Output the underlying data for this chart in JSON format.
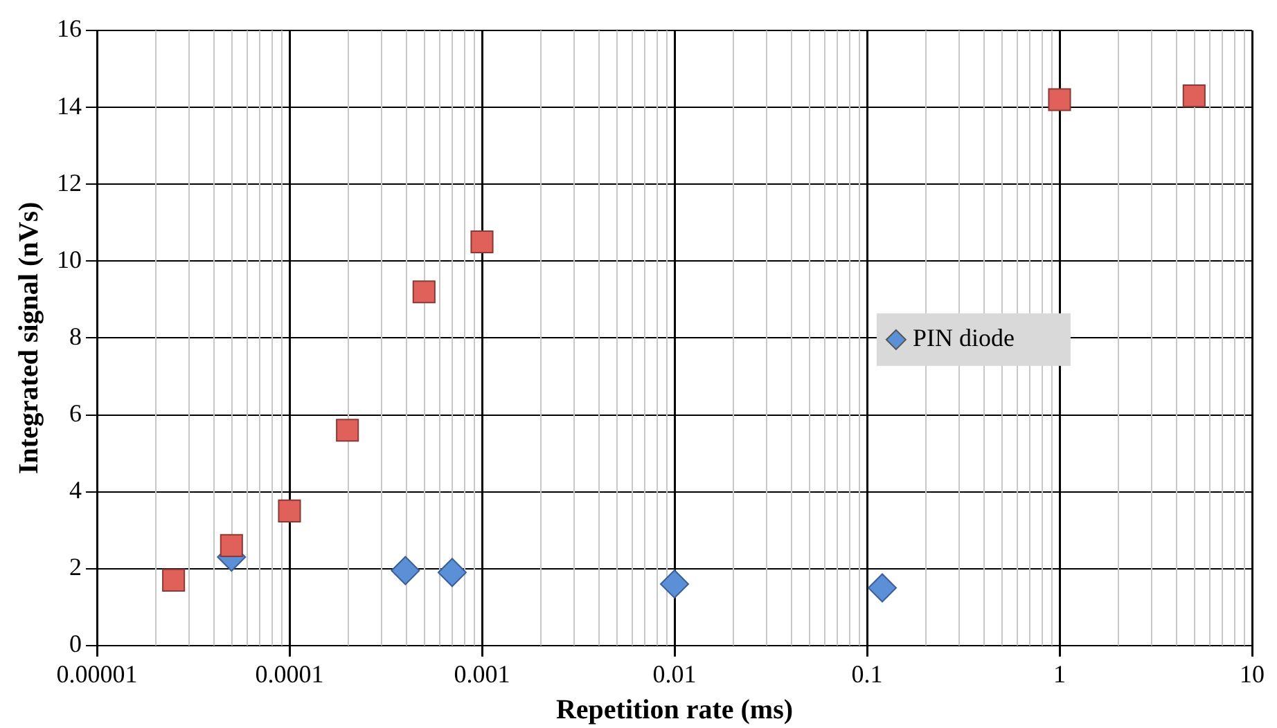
{
  "chart_data": {
    "type": "scatter",
    "xlabel": "Repetition rate (ms)",
    "ylabel": "Integrated signal (nVs)",
    "log": "x",
    "xlim": [
      1e-05,
      10
    ],
    "xticks": [
      {
        "value": 1e-05,
        "label": "0.00001"
      },
      {
        "value": 0.0001,
        "label": "0.0001"
      },
      {
        "value": 0.001,
        "label": "0.001"
      },
      {
        "value": 0.01,
        "label": "0.01"
      },
      {
        "value": 0.1,
        "label": "0.1"
      },
      1,
      10
    ],
    "ylim": [
      0,
      16
    ],
    "yticks": [
      0,
      2,
      4,
      6,
      8,
      10,
      12,
      14,
      16
    ],
    "grid": true,
    "legend": "right",
    "series": [
      {
        "color": "#e0605a",
        "marker": "square",
        "x": [
          2.5e-05,
          5e-05,
          0.0001,
          0.0002,
          0.0005,
          0.001,
          1,
          5
        ],
        "values": [
          1.7,
          2.6,
          3.5,
          5.6,
          9.2,
          10.5,
          14.2,
          14.3
        ]
      },
      {
        "name": "PIN diode",
        "color": "#5b8fd6",
        "marker": "diamond",
        "x": [
          5e-05,
          0.0004,
          0.0007,
          0.01,
          0.12
        ],
        "values": [
          2.3,
          1.95,
          1.9,
          1.6,
          1.5
        ]
      }
    ]
  }
}
